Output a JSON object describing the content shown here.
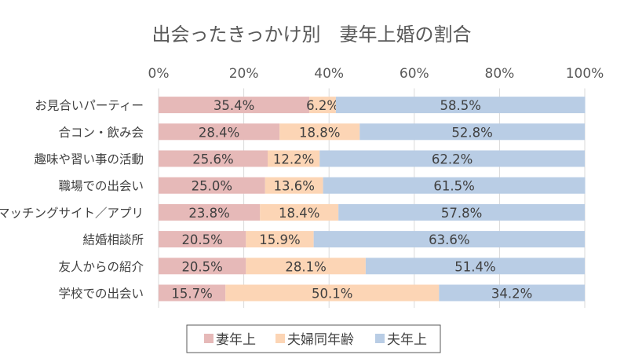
{
  "chart_data": {
    "type": "bar",
    "orientation": "horizontal",
    "stacked": true,
    "title": "出会ったきっかけ別　妻年上婚の割合",
    "xlabel": "",
    "ylabel": "",
    "xlim": [
      0,
      100
    ],
    "x_ticks": [
      "0%",
      "20%",
      "40%",
      "60%",
      "80%",
      "100%"
    ],
    "x_axis_position": "top",
    "categories": [
      "お見合いパーティー",
      "合コン・飲み会",
      "趣味や習い事の活動",
      "職場での出会い",
      "マッチングサイト／アプリ",
      "結婚相談所",
      "友人からの紹介",
      "学校での出会い"
    ],
    "series": [
      {
        "name": "妻年上",
        "color": "#E6B9B8",
        "values": [
          35.4,
          28.4,
          25.6,
          25.0,
          23.8,
          20.5,
          20.5,
          15.7
        ]
      },
      {
        "name": "夫婦同年齢",
        "color": "#FCD5B5",
        "values": [
          6.2,
          18.8,
          12.2,
          13.6,
          18.4,
          15.9,
          28.1,
          50.1
        ]
      },
      {
        "name": "夫年上",
        "color": "#B9CDE5",
        "values": [
          58.5,
          52.8,
          62.2,
          61.5,
          57.8,
          63.6,
          51.4,
          34.2
        ]
      }
    ],
    "data_label_suffix": "%",
    "legend_position": "bottom",
    "grid": true
  }
}
